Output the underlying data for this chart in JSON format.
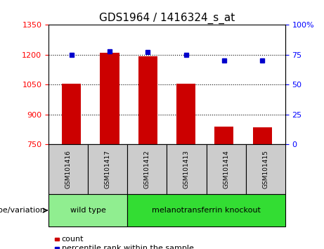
{
  "title": "GDS1964 / 1416324_s_at",
  "samples": [
    "GSM101416",
    "GSM101417",
    "GSM101412",
    "GSM101413",
    "GSM101414",
    "GSM101415"
  ],
  "count_values": [
    1055,
    1210,
    1193,
    1055,
    840,
    835
  ],
  "percentile_values": [
    75,
    78,
    77,
    75,
    70,
    70
  ],
  "ylim_left": [
    750,
    1350
  ],
  "ylim_right": [
    0,
    100
  ],
  "yticks_left": [
    750,
    900,
    1050,
    1200,
    1350
  ],
  "yticks_right": [
    0,
    25,
    50,
    75,
    100
  ],
  "ytick_labels_left": [
    "750",
    "900",
    "1050",
    "1200",
    "1350"
  ],
  "ytick_labels_right": [
    "0",
    "25",
    "50",
    "75",
    "100%"
  ],
  "bar_color": "#cc0000",
  "dot_color": "#0000cc",
  "baseline": 750,
  "groups": [
    {
      "label": "wild type",
      "indices": [
        0,
        1
      ],
      "color": "#90ee90"
    },
    {
      "label": "melanotransferrin knockout",
      "indices": [
        2,
        3,
        4,
        5
      ],
      "color": "#33dd33"
    }
  ],
  "group_label": "genotype/variation",
  "legend_count": "count",
  "legend_percentile": "percentile rank within the sample",
  "grid_color": "black",
  "background_color": "#ffffff",
  "panel_color": "#cccccc",
  "bar_width": 0.5,
  "figsize": [
    4.61,
    3.54
  ],
  "dpi": 100
}
